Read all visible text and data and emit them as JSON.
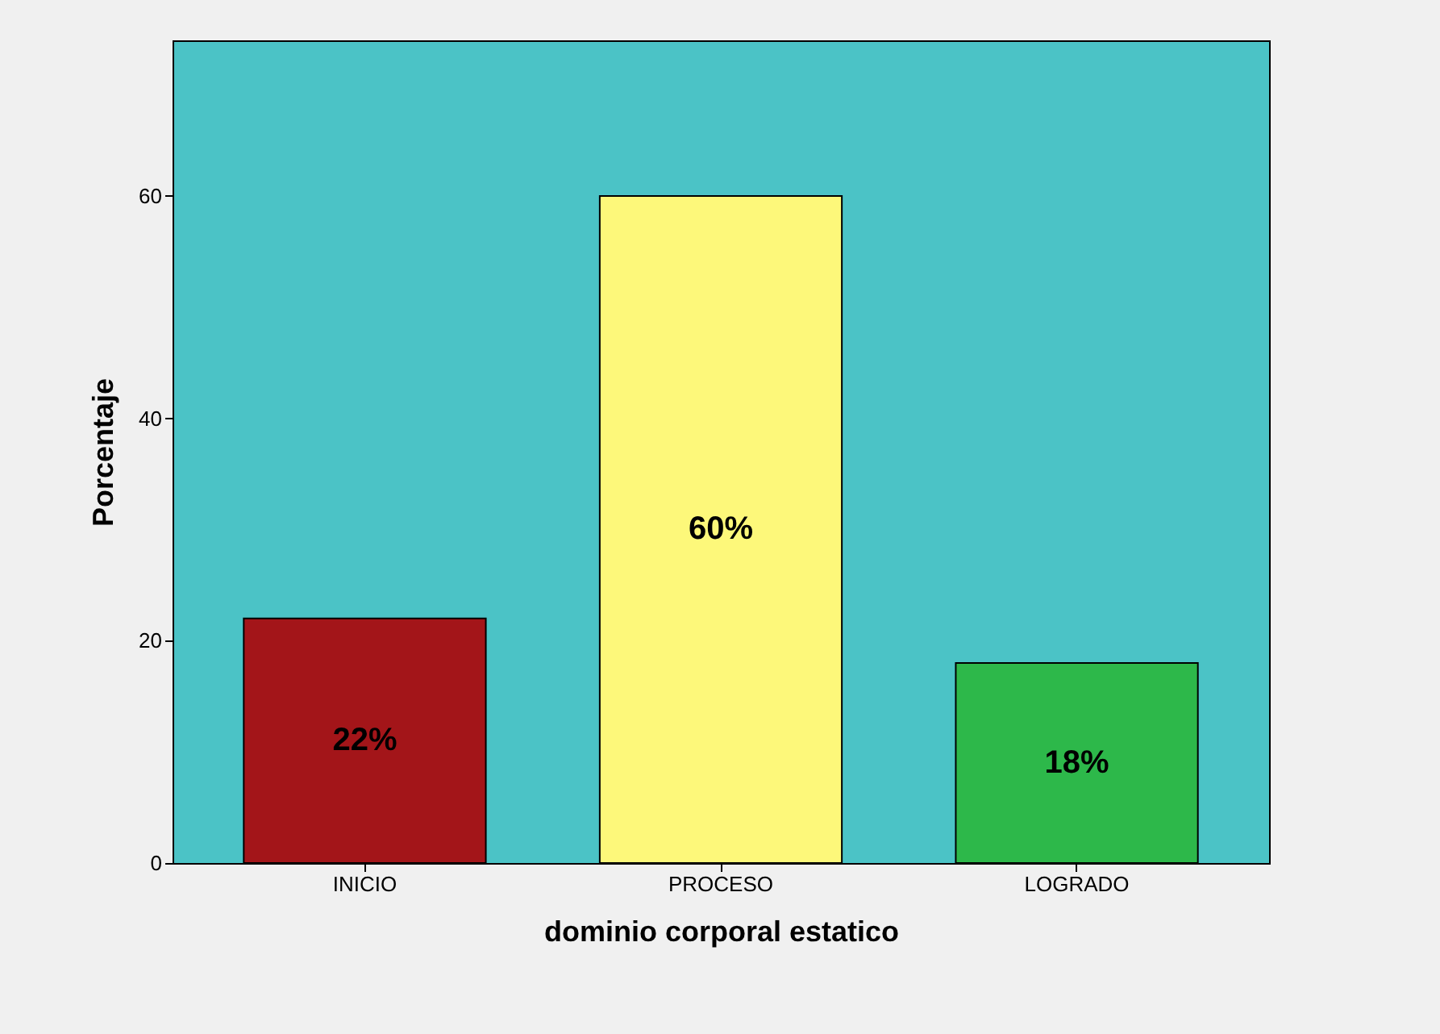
{
  "chart_data": {
    "type": "bar",
    "xlabel": "dominio corporal estatico",
    "ylabel": "Porcentaje",
    "categories": [
      "INICIO",
      "PROCESO",
      "LOGRADO"
    ],
    "values": [
      22,
      60,
      18
    ],
    "colors": [
      "#a31519",
      "#fdf87a",
      "#2db84a"
    ],
    "value_labels": [
      "22%",
      "60%",
      "18%"
    ],
    "ylim": [
      0,
      74
    ],
    "yticks": [
      0,
      20,
      40,
      60
    ],
    "grid": false
  }
}
